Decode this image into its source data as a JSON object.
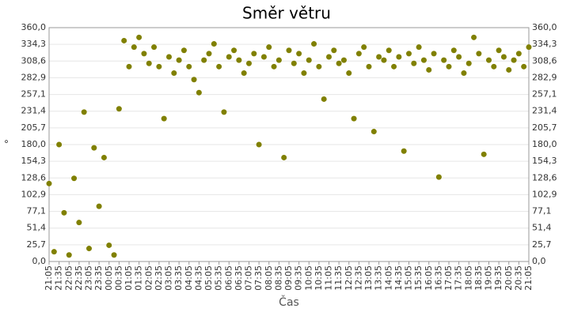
{
  "chart_data": {
    "type": "scatter",
    "title": "Směr větru",
    "x_label": "Čas",
    "y_label": "°",
    "color": "#808000",
    "grid": true,
    "ylim": [
      0,
      360
    ],
    "yticks": [
      {
        "value": 0,
        "label": "0,0"
      },
      {
        "value": 25.7,
        "label": "25,7"
      },
      {
        "value": 51.4,
        "label": "51,4"
      },
      {
        "value": 77.1,
        "label": "77,1"
      },
      {
        "value": 102.9,
        "label": "102,9"
      },
      {
        "value": 128.6,
        "label": "128,6"
      },
      {
        "value": 154.3,
        "label": "154,3"
      },
      {
        "value": 180,
        "label": "180,0"
      },
      {
        "value": 205.7,
        "label": "205,7"
      },
      {
        "value": 231.4,
        "label": "231,4"
      },
      {
        "value": 257.1,
        "label": "257,1"
      },
      {
        "value": 282.9,
        "label": "282,9"
      },
      {
        "value": 308.6,
        "label": "308,6"
      },
      {
        "value": 334.3,
        "label": "334,3"
      },
      {
        "value": 360,
        "label": "360,0"
      }
    ],
    "xticks": [
      "21:05",
      "21:35",
      "22:05",
      "22:35",
      "23:05",
      "23:35",
      "00:05",
      "00:35",
      "01:05",
      "01:35",
      "02:05",
      "02:35",
      "03:05",
      "03:35",
      "04:05",
      "04:35",
      "05:05",
      "05:35",
      "06:05",
      "06:35",
      "07:05",
      "07:35",
      "08:05",
      "08:35",
      "09:05",
      "09:35",
      "10:05",
      "10:35",
      "11:05",
      "11:35",
      "12:05",
      "12:35",
      "13:05",
      "13:35",
      "14:05",
      "14:35",
      "15:05",
      "15:35",
      "16:05",
      "16:35",
      "17:05",
      "17:35",
      "18:05",
      "18:35",
      "19:05",
      "19:35",
      "20:05",
      "20:35",
      "21:05"
    ],
    "x": [
      "21:05",
      "21:20",
      "21:35",
      "21:50",
      "22:05",
      "22:20",
      "22:35",
      "22:50",
      "23:05",
      "23:20",
      "23:35",
      "23:50",
      "00:05",
      "00:20",
      "00:35",
      "00:50",
      "01:05",
      "01:20",
      "01:35",
      "01:50",
      "02:05",
      "02:20",
      "02:35",
      "02:50",
      "03:05",
      "03:20",
      "03:35",
      "03:50",
      "04:05",
      "04:20",
      "04:35",
      "04:50",
      "05:05",
      "05:20",
      "05:35",
      "05:50",
      "06:05",
      "06:20",
      "06:35",
      "06:50",
      "07:05",
      "07:20",
      "07:35",
      "07:50",
      "08:05",
      "08:20",
      "08:35",
      "08:50",
      "09:05",
      "09:20",
      "09:35",
      "09:50",
      "10:05",
      "10:20",
      "10:35",
      "10:50",
      "11:05",
      "11:20",
      "11:35",
      "11:50",
      "12:05",
      "12:20",
      "12:35",
      "12:50",
      "13:05",
      "13:20",
      "13:35",
      "13:50",
      "14:05",
      "14:20",
      "14:35",
      "14:50",
      "15:05",
      "15:20",
      "15:35",
      "15:50",
      "16:05",
      "16:20",
      "16:35",
      "16:50",
      "17:05",
      "17:20",
      "17:35",
      "17:50",
      "18:05",
      "18:20",
      "18:35",
      "18:50",
      "19:05",
      "19:20",
      "19:35",
      "19:50",
      "20:05",
      "20:20",
      "20:35",
      "20:50",
      "21:05"
    ],
    "values": [
      120,
      15,
      180,
      75,
      10,
      128,
      60,
      230,
      20,
      175,
      85,
      160,
      25,
      10,
      235,
      340,
      300,
      330,
      345,
      320,
      305,
      330,
      300,
      220,
      315,
      290,
      310,
      325,
      300,
      280,
      260,
      310,
      320,
      335,
      300,
      230,
      315,
      325,
      310,
      290,
      305,
      320,
      180,
      315,
      330,
      300,
      310,
      160,
      325,
      305,
      320,
      290,
      310,
      335,
      300,
      250,
      315,
      325,
      305,
      310,
      290,
      220,
      320,
      330,
      300,
      200,
      315,
      310,
      325,
      300,
      315,
      170,
      320,
      305,
      330,
      310,
      295,
      320,
      130,
      310,
      300,
      325,
      315,
      290,
      305,
      345,
      320,
      165,
      310,
      300,
      325,
      315,
      295,
      310,
      320,
      300,
      330
    ]
  }
}
